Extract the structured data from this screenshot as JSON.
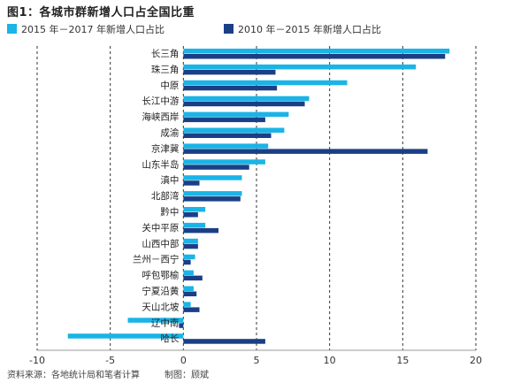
{
  "figure": {
    "title": "图1：各城市群新增人口占全国比重",
    "footer_source": "资料来源：各地统计局和笔者计算",
    "footer_author": "制图：顾斌"
  },
  "colors": {
    "series_2015_2017": "#1ab4e6",
    "series_2010_2015": "#1b3f86",
    "grid": "#333333",
    "axis": "#999999"
  },
  "chart_data": {
    "type": "bar",
    "orientation": "horizontal",
    "title": "图1：各城市群新增人口占全国比重",
    "xlabel": "",
    "ylabel": "",
    "xlim": [
      -10,
      20
    ],
    "xticks": [
      -10,
      -5,
      0,
      5,
      10,
      15,
      20
    ],
    "grid": "vertical dashed",
    "legend_position": "top",
    "categories": [
      "长三角",
      "珠三角",
      "中原",
      "长江中游",
      "海峡西岸",
      "成渝",
      "京津冀",
      "山东半岛",
      "滇中",
      "北部湾",
      "黔中",
      "关中平原",
      "山西中部",
      "兰州－西宁",
      "呼包鄂榆",
      "宁夏沿黄",
      "天山北坡",
      "辽中南",
      "哈长"
    ],
    "series": [
      {
        "name": "2015 年－2017 年新增人口占比",
        "values": [
          18.2,
          15.9,
          11.2,
          8.6,
          7.2,
          6.9,
          5.8,
          5.6,
          4.0,
          4.0,
          1.5,
          1.5,
          1.0,
          0.8,
          0.7,
          0.7,
          0.5,
          -3.8,
          -7.9
        ]
      },
      {
        "name": "2010 年－2015 年新增人口占比",
        "values": [
          17.9,
          6.3,
          6.4,
          8.3,
          5.6,
          6.0,
          16.7,
          4.5,
          1.1,
          3.9,
          1.0,
          2.4,
          1.0,
          0.5,
          1.3,
          0.9,
          1.1,
          -0.3,
          5.6
        ]
      }
    ]
  }
}
